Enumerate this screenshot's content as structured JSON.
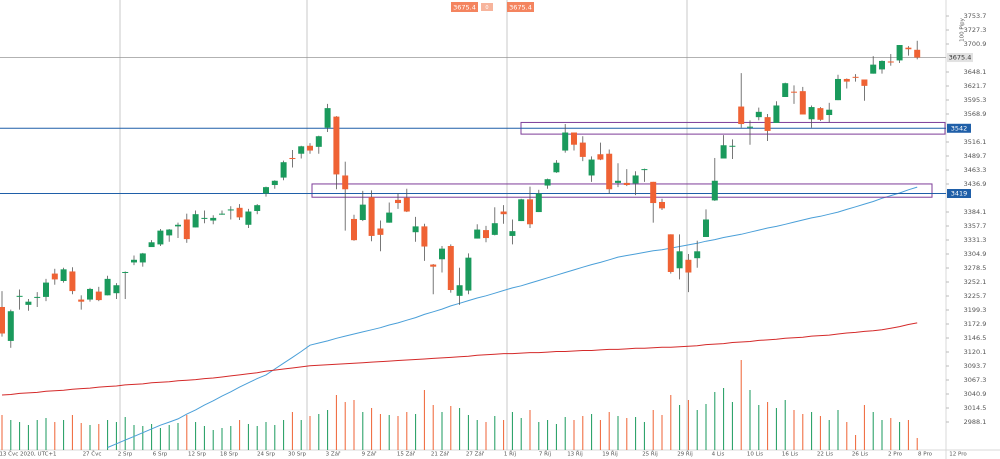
{
  "chart_data": {
    "type": "candlestick",
    "bid": 3675.4,
    "spread": 0,
    "ask": 3675.4,
    "y_axis_title": "100 Pipy",
    "ylim": [
      2935.3,
      3783.9
    ],
    "yticks": [
      3753.7,
      3727.3,
      3700.9,
      3648.1,
      3621.7,
      3595.3,
      3568.9,
      3516.1,
      3489.7,
      3463.3,
      3436.9,
      3384.1,
      3357.7,
      3331.3,
      3304.9,
      3278.5,
      3252.1,
      3225.7,
      3199.3,
      3172.9,
      3146.5,
      3120.1,
      3093.7,
      3067.3,
      3040.9,
      3014.5,
      2988.1
    ],
    "xtick_labels": [
      "13 Čvc 2020, UTC+1",
      "27 Čvc",
      "2 Srp",
      "6 Srp",
      "12 Srp",
      "18 Srp",
      "24 Srp",
      "30 Srp",
      "3 Zář",
      "9 Zář",
      "15 Zář",
      "21 Zář",
      "27 Zář",
      "1 Říj",
      "7 Říj",
      "13 Říj",
      "19 Říj",
      "25 Říj",
      "29 Říj",
      "4 Lis",
      "10 Lis",
      "16 Lis",
      "22 Lis",
      "26 Lis",
      "2 Pro",
      "8 Pro",
      "12 Pro"
    ],
    "up_color": "#1a9a5c",
    "down_color": "#ef6234",
    "open": [
      3205,
      3141,
      3225,
      3209,
      3224,
      3224,
      3268,
      3254,
      3272,
      3219,
      3219,
      3234,
      3227,
      3231,
      3270,
      3289,
      3289,
      3318,
      3323,
      3340,
      3357,
      3370,
      3355,
      3372,
      3368,
      3380,
      3387,
      3392,
      3360,
      3386,
      3419,
      3435,
      3449,
      3486,
      3494,
      3509,
      3507,
      3543,
      3564,
      3453,
      3371,
      3369,
      3412,
      3353,
      3364,
      3407,
      3411,
      3346,
      3357,
      3285,
      3295,
      3320,
      3226,
      3236,
      3334,
      3350,
      3341,
      3385,
      3339,
      3367,
      3408,
      3384,
      3434,
      3459,
      3500,
      3534,
      3515,
      3453,
      3493,
      3494,
      3439,
      3439,
      3438,
      3464,
      3441,
      3403,
      3342,
      3278,
      3294,
      3297,
      3337,
      3406,
      3485,
      3508,
      3583,
      3543,
      3563,
      3563,
      3552,
      3601,
      3611,
      3612,
      3559,
      3580,
      3567,
      3595,
      3635,
      3639,
      3634,
      3645,
      3653,
      3668,
      3670,
      3694,
      3690
    ],
    "high": [
      3235,
      3200,
      3238,
      3220,
      3233,
      3258,
      3277,
      3279,
      3280,
      3227,
      3241,
      3243,
      3264,
      3250,
      3272,
      3302,
      3307,
      3331,
      3352,
      3352,
      3364,
      3381,
      3387,
      3387,
      3378,
      3387,
      3395,
      3399,
      3390,
      3399,
      3432,
      3444,
      3481,
      3501,
      3509,
      3514,
      3528,
      3588,
      3565,
      3479,
      3379,
      3424,
      3425,
      3368,
      3402,
      3419,
      3428,
      3375,
      3362,
      3286,
      3320,
      3323,
      3279,
      3306,
      3361,
      3358,
      3393,
      3397,
      3370,
      3409,
      3432,
      3426,
      3447,
      3482,
      3550,
      3534,
      3527,
      3489,
      3515,
      3502,
      3476,
      3465,
      3461,
      3466,
      3441,
      3409,
      3342,
      3342,
      3305,
      3330,
      3389,
      3486,
      3529,
      3521,
      3646,
      3557,
      3581,
      3569,
      3593,
      3628,
      3623,
      3620,
      3585,
      3582,
      3590,
      3643,
      3636,
      3644,
      3634,
      3678,
      3670,
      3682,
      3699,
      3697,
      3707
    ],
    "low": [
      3149,
      3128,
      3200,
      3198,
      3205,
      3216,
      3247,
      3251,
      3229,
      3200,
      3215,
      3216,
      3227,
      3220,
      3220,
      3284,
      3281,
      3318,
      3320,
      3328,
      3335,
      3326,
      3355,
      3363,
      3361,
      3379,
      3370,
      3369,
      3354,
      3380,
      3413,
      3428,
      3444,
      3468,
      3485,
      3494,
      3494,
      3535,
      3427,
      3349,
      3330,
      3367,
      3329,
      3310,
      3364,
      3390,
      3384,
      3328,
      3292,
      3229,
      3270,
      3232,
      3209,
      3229,
      3334,
      3327,
      3340,
      3362,
      3323,
      3367,
      3354,
      3384,
      3428,
      3458,
      3496,
      3500,
      3480,
      3441,
      3482,
      3419,
      3431,
      3433,
      3416,
      3441,
      3364,
      3388,
      3268,
      3257,
      3233,
      3279,
      3337,
      3405,
      3485,
      3484,
      3543,
      3511,
      3557,
      3518,
      3552,
      3601,
      3588,
      3568,
      3543,
      3556,
      3553,
      3595,
      3617,
      3630,
      3594,
      3645,
      3645,
      3660,
      3665,
      3679,
      3672
    ],
    "close": [
      3155,
      3197,
      3226,
      3215,
      3224,
      3251,
      3257,
      3276,
      3235,
      3215,
      3239,
      3218,
      3258,
      3246,
      3271,
      3294,
      3306,
      3327,
      3349,
      3351,
      3360,
      3333,
      3380,
      3373,
      3373,
      3381,
      3389,
      3374,
      3385,
      3397,
      3431,
      3443,
      3478,
      3484,
      3508,
      3500,
      3527,
      3580,
      3455,
      3427,
      3331,
      3398,
      3339,
      3341,
      3383,
      3401,
      3385,
      3357,
      3319,
      3281,
      3315,
      3237,
      3246,
      3298,
      3351,
      3335,
      3363,
      3380,
      3348,
      3408,
      3361,
      3419,
      3446,
      3477,
      3534,
      3511,
      3488,
      3483,
      3483,
      3427,
      3443,
      3435,
      3453,
      3465,
      3401,
      3391,
      3271,
      3310,
      3270,
      3310,
      3370,
      3443,
      3510,
      3509,
      3550,
      3545,
      3573,
      3537,
      3585,
      3627,
      3610,
      3568,
      3582,
      3558,
      3577,
      3635,
      3630,
      3638,
      3622,
      3662,
      3669,
      3666,
      3699,
      3691,
      3675.4
    ],
    "volume": [
      35,
      30,
      28,
      25,
      30,
      32,
      28,
      30,
      35,
      27,
      25,
      26,
      30,
      28,
      33,
      25,
      24,
      26,
      22,
      25,
      27,
      35,
      28,
      24,
      20,
      22,
      24,
      30,
      26,
      24,
      28,
      25,
      30,
      38,
      30,
      34,
      36,
      40,
      55,
      48,
      50,
      38,
      42,
      36,
      35,
      34,
      38,
      36,
      60,
      45,
      38,
      44,
      42,
      35,
      30,
      28,
      34,
      30,
      38,
      32,
      40,
      28,
      30,
      26,
      33,
      30,
      34,
      36,
      30,
      38,
      34,
      32,
      33,
      28,
      40,
      35,
      55,
      45,
      50,
      40,
      46,
      58,
      62,
      48,
      90,
      60,
      45,
      48,
      42,
      50,
      40,
      36,
      38,
      34,
      30,
      40,
      28,
      15,
      45,
      38,
      30,
      32,
      28,
      30,
      12
    ],
    "moving_averages": [
      {
        "color": "#4a9fd8",
        "values": [
          null,
          null,
          null,
          null,
          null,
          null,
          null,
          null,
          null,
          null,
          null,
          null,
          2940,
          2947,
          2954,
          2961,
          2968,
          2975,
          2982,
          2988,
          2994,
          3003,
          3011,
          3020,
          3028,
          3037,
          3045,
          3054,
          3062,
          3070,
          3077,
          3088,
          3099,
          3110,
          3121,
          3133,
          3137,
          3141,
          3146,
          3150,
          3154,
          3158,
          3162,
          3166,
          3171,
          3175,
          3180,
          3185,
          3191,
          3196,
          3201,
          3207,
          3212,
          3217,
          3222,
          3226,
          3231,
          3236,
          3241,
          3245,
          3250,
          3255,
          3260,
          3265,
          3270,
          3275,
          3280,
          3285,
          3289,
          3294,
          3299,
          3302,
          3305,
          3308,
          3311,
          3313,
          3316,
          3319,
          3322,
          3325,
          3329,
          3332,
          3336,
          3339,
          3342,
          3346,
          3350,
          3354,
          3357,
          3361,
          3365,
          3369,
          3373,
          3376,
          3380,
          3384,
          3389,
          3394,
          3399,
          3404,
          3410,
          3415,
          3420,
          3426,
          3431
        ]
      },
      {
        "color": "#d42a2a",
        "values": [
          3039,
          3040,
          3042,
          3043,
          3044,
          3046,
          3047,
          3048,
          3050,
          3051,
          3052,
          3054,
          3055,
          3056,
          3058,
          3059,
          3060,
          3062,
          3063,
          3064,
          3066,
          3067,
          3068,
          3070,
          3071,
          3073,
          3075,
          3077,
          3079,
          3081,
          3084,
          3086,
          3088,
          3090,
          3092,
          3094,
          3095,
          3096,
          3097,
          3098,
          3099,
          3100,
          3101,
          3102,
          3103,
          3104,
          3105,
          3106,
          3107,
          3108,
          3109,
          3110,
          3111,
          3112,
          3114,
          3115,
          3116,
          3117,
          3117,
          3118,
          3119,
          3119,
          3120,
          3121,
          3121,
          3122,
          3123,
          3123,
          3124,
          3125,
          3125,
          3126,
          3127,
          3127,
          3128,
          3129,
          3129,
          3130,
          3131,
          3132,
          3134,
          3135,
          3136,
          3138,
          3139,
          3140,
          3142,
          3143,
          3144,
          3146,
          3147,
          3148,
          3150,
          3151,
          3152,
          3154,
          3156,
          3157,
          3159,
          3160,
          3162,
          3165,
          3168,
          3172,
          3175
        ]
      }
    ],
    "levels": [
      3542,
      3419
    ],
    "level_color": "#1f5fa8",
    "zones": [
      {
        "low": 3531,
        "high": 3553
      },
      {
        "low": 3412,
        "high": 3437
      }
    ],
    "zone_color": "#7d3c98",
    "last_price": 3675.4
  }
}
